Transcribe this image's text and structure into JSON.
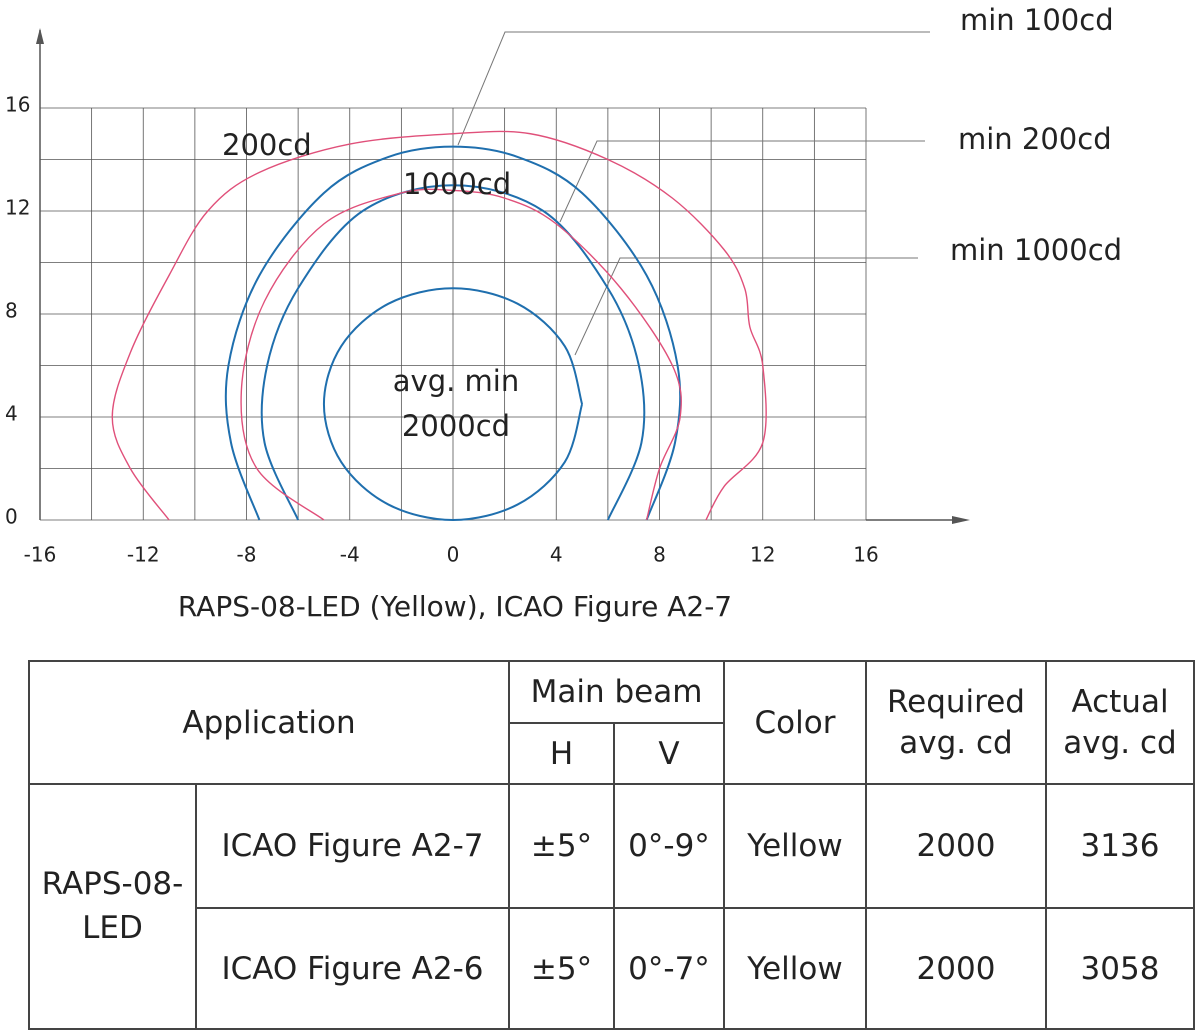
{
  "chart_data": {
    "type": "line",
    "xlabel": "RAPS-08-LED (Yellow), ICAO Figure A2-7",
    "xlim": [
      -16,
      16
    ],
    "ylim": [
      0,
      16
    ],
    "xticks": [
      -16,
      -12,
      -8,
      -4,
      0,
      4,
      8,
      12,
      16
    ],
    "yticks": [
      0,
      4,
      8,
      12,
      16
    ],
    "xgrid": [
      -16,
      -14,
      -12,
      -10,
      -8,
      -6,
      -4,
      -2,
      0,
      2,
      4,
      6,
      8,
      10,
      12,
      14,
      16
    ],
    "ygrid": [
      0,
      2,
      4,
      6,
      8,
      10,
      12,
      14,
      16
    ],
    "grid": true,
    "series": [
      {
        "color": "#1f6fae",
        "x": [
          -7.5,
          -8.6,
          -8.7,
          -7.5,
          -5,
          -2.5,
          0,
          2.5,
          5,
          7.5,
          8.7,
          8.6,
          7.5
        ],
        "values": [
          0,
          3,
          6,
          9.5,
          12.7,
          14.1,
          14.5,
          14.1,
          12.7,
          9.5,
          6,
          3,
          0
        ]
      },
      {
        "color": "#1f6fae",
        "x": [
          -6,
          -7.3,
          -7.2,
          -6,
          -3.5,
          0,
          3.5,
          6,
          7.2,
          7.3,
          6
        ],
        "values": [
          0,
          3,
          6,
          9,
          12,
          13,
          12,
          9,
          6,
          3,
          0
        ]
      },
      {
        "color": "#1f6fae",
        "x": [
          5,
          4.33,
          2.5,
          0,
          -2.5,
          -4.33,
          -5,
          -4.33,
          -2.5,
          0,
          2.5,
          4.33,
          5
        ],
        "values": [
          4.5,
          6.75,
          8.4,
          9,
          8.4,
          6.75,
          4.5,
          2.25,
          0.6,
          0,
          0.6,
          2.25,
          4.5
        ]
      },
      {
        "color": "#e0507a",
        "x": [
          -11,
          -12.5,
          -13.2,
          -12.5,
          -11,
          -9.5,
          -7.5,
          -4,
          0,
          3,
          6,
          8.5,
          10.5,
          11.3,
          11.5,
          12,
          12,
          10.5,
          9.8
        ],
        "values": [
          0,
          2,
          4,
          6.5,
          9.5,
          12,
          13.5,
          14.6,
          15,
          15,
          14,
          12.5,
          10.5,
          9,
          7.5,
          6,
          3,
          1.3,
          0
        ]
      },
      {
        "color": "#e0507a",
        "x": [
          -5,
          -7.6,
          -8.2,
          -7.3,
          -5,
          -2,
          0,
          2,
          4,
          6.5,
          8.5,
          8.8,
          8,
          7.5
        ],
        "values": [
          0,
          2,
          5,
          8.5,
          11.5,
          12.7,
          12.8,
          12.5,
          11.5,
          9,
          6,
          4,
          2,
          0
        ]
      }
    ],
    "annotations": [
      "min 100cd",
      "min 200cd",
      "min 1000cd",
      "200cd",
      "1000cd",
      "avg. min",
      "2000cd"
    ]
  },
  "table": {
    "header": [
      "Application",
      "Main beam",
      "H",
      "V",
      "Color",
      "Required avg. cd",
      "Actual avg. cd"
    ],
    "rows": [
      [
        "RAPS-08-LED",
        "ICAO Figure A2-7",
        "±5°",
        "0°-9°",
        "Yellow",
        "2000",
        "3136"
      ],
      [
        "RAPS-08-LED",
        "ICAO Figure A2-6",
        "±5°",
        "0°-7°",
        "Yellow",
        "2000",
        "3058"
      ]
    ]
  }
}
